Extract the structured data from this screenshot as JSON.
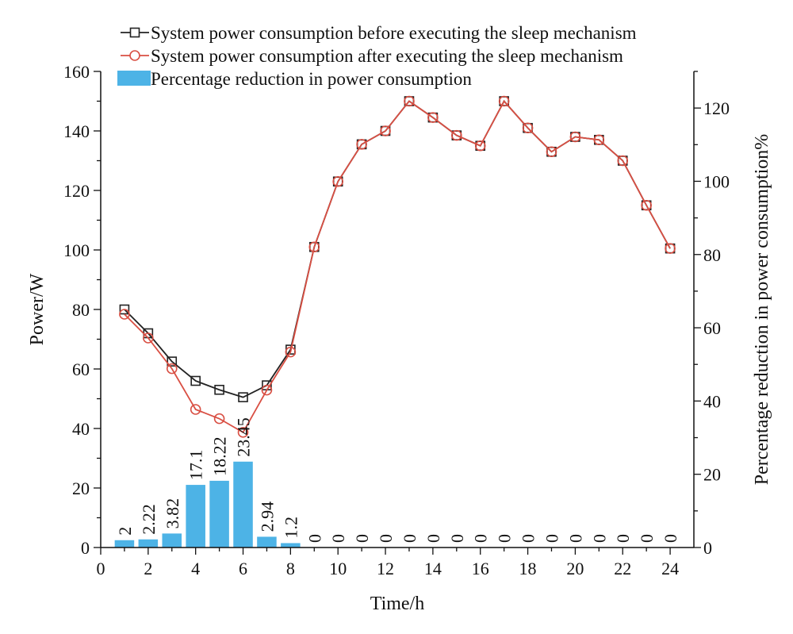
{
  "chart_data": {
    "type": "bar+line",
    "x": [
      1,
      2,
      3,
      4,
      5,
      6,
      7,
      8,
      9,
      10,
      11,
      12,
      13,
      14,
      15,
      16,
      17,
      18,
      19,
      20,
      21,
      22,
      23,
      24
    ],
    "xlabel": "Time/h",
    "ylabel": "Power/W",
    "y2label": "Percentage reduction in power consumption%",
    "xlim": [
      0,
      25
    ],
    "ylim": [
      0,
      160
    ],
    "y2lim": [
      0,
      130
    ],
    "xticks": [
      0,
      2,
      4,
      6,
      8,
      10,
      12,
      14,
      16,
      18,
      20,
      22,
      24
    ],
    "yticks": [
      0,
      20,
      40,
      60,
      80,
      100,
      120,
      140,
      160
    ],
    "y2ticks": [
      0,
      20,
      40,
      60,
      80,
      100,
      120
    ],
    "series": [
      {
        "name": "System power consumption before executing the sleep mechanism",
        "kind": "line",
        "axis": "left",
        "marker": "square",
        "color": "#222222",
        "values": [
          80,
          72,
          62.5,
          56,
          53,
          50.5,
          54.5,
          66.5,
          101,
          123,
          135.5,
          140,
          150,
          144.5,
          138.5,
          135,
          150,
          141,
          133,
          138,
          137,
          130,
          115,
          100.5
        ]
      },
      {
        "name": "System power consumption after executing the sleep mechanism",
        "kind": "line",
        "axis": "left",
        "marker": "circle",
        "color": "#d94f43",
        "values": [
          78.4,
          70.4,
          60.1,
          46.4,
          43.3,
          38.7,
          52.9,
          65.7,
          101,
          123,
          135.5,
          140,
          150,
          144.5,
          138.5,
          135,
          150,
          141,
          133,
          138,
          137,
          130,
          115,
          100.5
        ]
      },
      {
        "name": "Percentage reduction in power consumption",
        "kind": "bar",
        "axis": "right",
        "color": "#4db3e6",
        "values": [
          2,
          2.22,
          3.82,
          17.1,
          18.22,
          23.45,
          2.94,
          1.2,
          0,
          0,
          0,
          0,
          0,
          0,
          0,
          0,
          0,
          0,
          0,
          0,
          0,
          0,
          0,
          0
        ],
        "labels": [
          "2",
          "2.22",
          "3.82",
          "17.1",
          "18.22",
          "23.45",
          "2.94",
          "1.2",
          "0",
          "0",
          "0",
          "0",
          "0",
          "0",
          "0",
          "0",
          "0",
          "0",
          "0",
          "0",
          "0",
          "0",
          "0",
          "0"
        ]
      }
    ],
    "legend": {
      "position": "top",
      "entries": [
        "System power consumption before executing the sleep mechanism",
        "System power consumption after executing the sleep mechanism",
        "Percentage reduction in power consumption"
      ]
    }
  }
}
